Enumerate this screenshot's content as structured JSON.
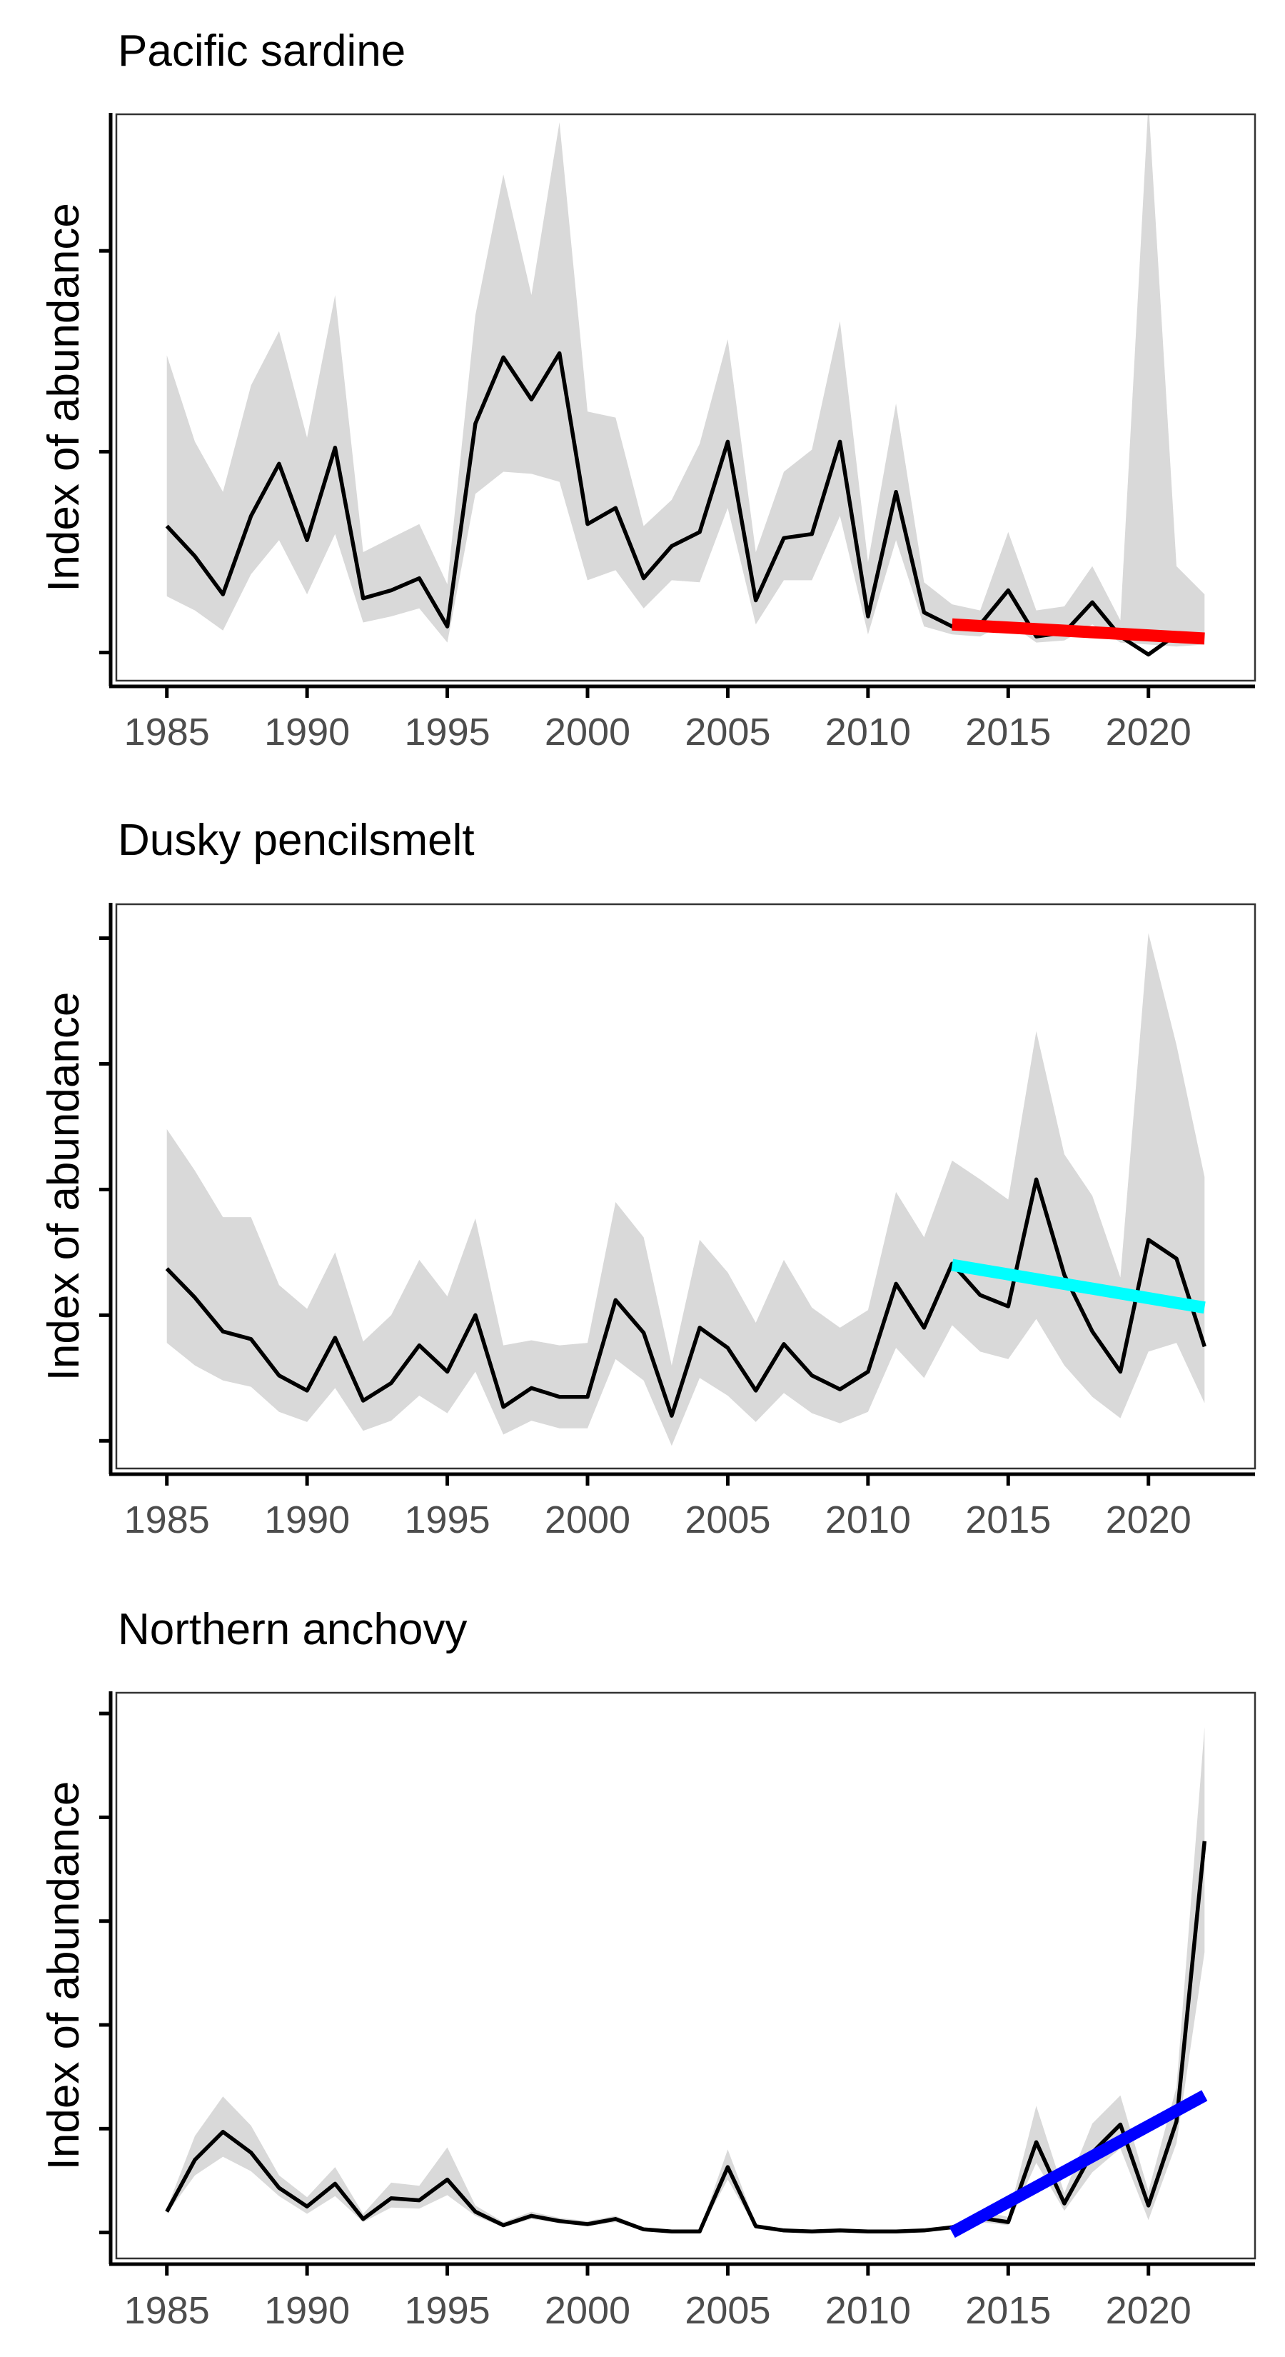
{
  "chart_data": [
    {
      "type": "line",
      "title": "Pacific sardine",
      "ylabel": "Index of abundance",
      "xlabel": "",
      "x_ticks": [
        "1985",
        "1990",
        "1995",
        "2000",
        "2005",
        "2010",
        "2015",
        "2020"
      ],
      "xlim": [
        1983.2,
        2023.8
      ],
      "ylim": [
        -0.14,
        2.68
      ],
      "y_ticks": [
        0,
        1,
        2
      ],
      "y_tick_labels_shown": false,
      "years": [
        1985,
        1986,
        1987,
        1988,
        1989,
        1990,
        1991,
        1992,
        1993,
        1994,
        1995,
        1996,
        1997,
        1998,
        1999,
        2000,
        2001,
        2002,
        2003,
        2004,
        2005,
        2006,
        2007,
        2008,
        2009,
        2010,
        2011,
        2012,
        2013,
        2014,
        2015,
        2016,
        2017,
        2018,
        2019,
        2020,
        2021,
        2022
      ],
      "series": [
        {
          "values": [
            0.63,
            0.48,
            0.29,
            0.68,
            0.94,
            0.56,
            1.02,
            0.27,
            0.31,
            0.37,
            0.13,
            1.14,
            1.47,
            1.26,
            1.49,
            0.64,
            0.72,
            0.37,
            0.53,
            0.6,
            1.05,
            0.26,
            0.57,
            0.59,
            1.05,
            0.18,
            0.8,
            0.2,
            0.13,
            0.14,
            0.31,
            0.08,
            0.1,
            0.25,
            0.08,
            -0.01,
            0.09,
            0.09
          ]
        },
        {
          "band_upper": [
            1.48,
            1.05,
            0.8,
            1.33,
            1.6,
            1.07,
            1.78,
            0.5,
            0.57,
            0.64,
            0.34,
            1.68,
            2.38,
            1.78,
            2.64,
            1.2,
            1.17,
            0.63,
            0.76,
            1.04,
            1.56,
            0.5,
            0.9,
            1.01,
            1.65,
            0.45,
            1.24,
            0.35,
            0.24,
            0.21,
            0.6,
            0.21,
            0.23,
            0.43,
            0.16,
            2.74,
            0.43,
            0.29
          ]
        },
        {
          "band_lower": [
            0.28,
            0.21,
            0.11,
            0.39,
            0.56,
            0.29,
            0.59,
            0.15,
            0.18,
            0.22,
            0.05,
            0.79,
            0.9,
            0.89,
            0.85,
            0.36,
            0.41,
            0.22,
            0.36,
            0.35,
            0.72,
            0.14,
            0.36,
            0.36,
            0.68,
            0.09,
            0.56,
            0.13,
            0.09,
            0.08,
            0.15,
            0.05,
            0.06,
            0.14,
            0.05,
            0.04,
            0.03,
            0.04
          ]
        }
      ],
      "trend": {
        "x": [
          2013,
          2022
        ],
        "y": [
          0.14,
          0.07
        ],
        "color": "#ff0000"
      }
    },
    {
      "type": "line",
      "title": "Dusky pencilsmelt",
      "ylabel": "Index of abundance",
      "xlabel": "",
      "x_ticks": [
        "1985",
        "1990",
        "1995",
        "2000",
        "2005",
        "2010",
        "2015",
        "2020"
      ],
      "xlim": [
        1983.2,
        2023.8
      ],
      "ylim": [
        0.18,
        4.67
      ],
      "y_ticks": [
        0.4,
        1.4,
        2.4,
        3.4,
        4.4
      ],
      "y_tick_labels_shown": false,
      "years": [
        1985,
        1986,
        1987,
        1988,
        1989,
        1990,
        1991,
        1992,
        1993,
        1994,
        1995,
        1996,
        1997,
        1998,
        1999,
        2000,
        2001,
        2002,
        2003,
        2004,
        2005,
        2006,
        2007,
        2008,
        2009,
        2010,
        2011,
        2012,
        2013,
        2014,
        2015,
        2016,
        2017,
        2018,
        2019,
        2020,
        2021,
        2022
      ],
      "series": [
        {
          "values": [
            1.77,
            1.54,
            1.27,
            1.21,
            0.92,
            0.8,
            1.22,
            0.72,
            0.86,
            1.16,
            0.95,
            1.4,
            0.67,
            0.82,
            0.75,
            0.75,
            1.52,
            1.26,
            0.6,
            1.3,
            1.14,
            0.8,
            1.17,
            0.92,
            0.81,
            0.95,
            1.65,
            1.3,
            1.81,
            1.56,
            1.47,
            2.48,
            1.72,
            1.27,
            0.95,
            2.0,
            1.85,
            1.15
          ]
        },
        {
          "band_upper": [
            2.88,
            2.55,
            2.18,
            2.18,
            1.64,
            1.45,
            1.9,
            1.19,
            1.4,
            1.84,
            1.55,
            2.17,
            1.16,
            1.2,
            1.16,
            1.18,
            2.3,
            2.02,
            1.0,
            2.0,
            1.74,
            1.34,
            1.84,
            1.46,
            1.3,
            1.44,
            2.38,
            2.02,
            2.63,
            2.48,
            2.32,
            3.66,
            2.68,
            2.35,
            1.7,
            4.44,
            3.55,
            2.5
          ]
        },
        {
          "band_lower": [
            1.18,
            1.0,
            0.88,
            0.83,
            0.63,
            0.55,
            0.82,
            0.48,
            0.56,
            0.76,
            0.62,
            0.95,
            0.45,
            0.56,
            0.5,
            0.5,
            1.05,
            0.88,
            0.36,
            0.9,
            0.76,
            0.55,
            0.78,
            0.62,
            0.54,
            0.63,
            1.14,
            0.9,
            1.32,
            1.11,
            1.05,
            1.37,
            1.0,
            0.75,
            0.58,
            1.11,
            1.18,
            0.7
          ]
        }
      ],
      "trend": {
        "x": [
          2013,
          2022
        ],
        "y": [
          1.8,
          1.46
        ],
        "color": "#00ffff"
      }
    },
    {
      "type": "line",
      "title": "Northern anchovy",
      "ylabel": "Index of abundance",
      "xlabel": "",
      "x_ticks": [
        "1985",
        "1990",
        "1995",
        "2000",
        "2005",
        "2010",
        "2015",
        "2020"
      ],
      "xlim": [
        1983.2,
        2023.8
      ],
      "ylim": [
        -0.25,
        5.2
      ],
      "y_ticks": [
        0,
        1,
        2,
        3,
        4,
        5
      ],
      "y_tick_labels_shown": false,
      "years": [
        1985,
        1986,
        1987,
        1988,
        1989,
        1990,
        1991,
        1992,
        1993,
        1994,
        1995,
        1996,
        1997,
        1998,
        1999,
        2000,
        2001,
        2002,
        2003,
        2004,
        2005,
        2006,
        2007,
        2008,
        2009,
        2010,
        2011,
        2012,
        2013,
        2014,
        2015,
        2016,
        2017,
        2018,
        2019,
        2020,
        2021,
        2022
      ],
      "series": [
        {
          "values": [
            0.2,
            0.7,
            0.97,
            0.77,
            0.43,
            0.25,
            0.47,
            0.13,
            0.33,
            0.31,
            0.51,
            0.2,
            0.07,
            0.16,
            0.11,
            0.08,
            0.13,
            0.03,
            0.01,
            0.01,
            0.63,
            0.06,
            0.02,
            0.01,
            0.02,
            0.01,
            0.01,
            0.02,
            0.05,
            0.14,
            0.1,
            0.87,
            0.28,
            0.77,
            1.04,
            0.26,
            1.07,
            3.77
          ]
        },
        {
          "band_upper": [
            0.23,
            0.93,
            1.31,
            1.03,
            0.55,
            0.34,
            0.63,
            0.18,
            0.48,
            0.45,
            0.82,
            0.26,
            0.1,
            0.2,
            0.14,
            0.11,
            0.16,
            0.04,
            0.02,
            0.02,
            0.8,
            0.08,
            0.03,
            0.02,
            0.03,
            0.02,
            0.02,
            0.03,
            0.06,
            0.21,
            0.15,
            1.22,
            0.38,
            1.05,
            1.32,
            0.4,
            1.4,
            4.87
          ]
        },
        {
          "band_lower": [
            0.18,
            0.55,
            0.73,
            0.59,
            0.35,
            0.18,
            0.35,
            0.1,
            0.24,
            0.23,
            0.36,
            0.16,
            0.05,
            0.13,
            0.09,
            0.06,
            0.1,
            0.02,
            0.01,
            0.01,
            0.51,
            0.04,
            0.02,
            0.01,
            0.01,
            0.01,
            0.01,
            0.01,
            0.04,
            0.1,
            0.07,
            0.67,
            0.21,
            0.58,
            0.81,
            0.12,
            0.86,
            2.7
          ]
        }
      ],
      "trend": {
        "x": [
          2013,
          2022
        ],
        "y": [
          0.0,
          1.32
        ],
        "color": "#0000ff"
      }
    }
  ]
}
